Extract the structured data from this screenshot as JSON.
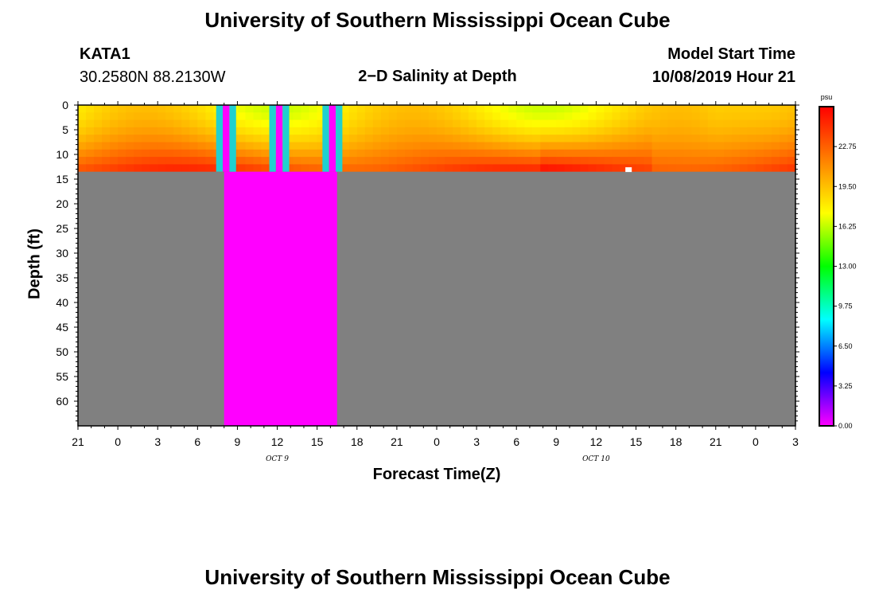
{
  "header": {
    "title_top": "University of Southern Mississippi Ocean Cube",
    "title_bottom": "University of Southern Mississippi Ocean Cube",
    "station": "KATA1",
    "coords": "30.2580N 88.2130W",
    "plot_title": "2−D Salinity at Depth",
    "model_start_label": "Model Start Time",
    "model_start_value": "10/08/2019 Hour 21"
  },
  "chart_data": {
    "type": "heatmap",
    "xlabel": "Forecast Time(Z)",
    "ylabel": "Depth (ft)",
    "y_ticks": [
      "0",
      "5",
      "10",
      "15",
      "20",
      "25",
      "30",
      "35",
      "40",
      "45",
      "50",
      "55",
      "60"
    ],
    "x_ticks": [
      "21",
      "0",
      "3",
      "6",
      "9",
      "12",
      "15",
      "18",
      "21",
      "0",
      "3",
      "6",
      "9",
      "12",
      "15",
      "18",
      "21",
      "0",
      "3"
    ],
    "date_labels": [
      {
        "text": "OCT 9",
        "after_tick": 5
      },
      {
        "text": "OCT 10",
        "after_tick": 13
      }
    ],
    "water_bottom_ft": 13.5,
    "y_range_ft": [
      0,
      65
    ],
    "forecast_hours": [
      0,
      54
    ],
    "colorbar": {
      "unit": "psu",
      "ticks": [
        "22.75",
        "19.50",
        "16.25",
        "13.00",
        "9.75",
        "6.50",
        "3.25",
        "0.00"
      ],
      "range": [
        0,
        26
      ],
      "colors": [
        "#ff00ff",
        "#8000ff",
        "#0000ff",
        "#0080ff",
        "#00ffff",
        "#00ff80",
        "#00ff00",
        "#80ff00",
        "#ffff00",
        "#ffc000",
        "#ff8000",
        "#ff4000",
        "#ff0000"
      ]
    },
    "missing_window_hours": [
      11,
      19.5
    ],
    "colors": {
      "land": "#808080",
      "missing": "#ff00ff"
    }
  }
}
